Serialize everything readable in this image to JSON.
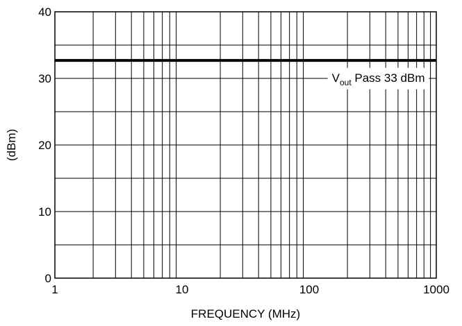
{
  "chart_data": {
    "type": "line",
    "title": "",
    "xlabel": "FREQUENCY (MHz)",
    "ylabel": "(dBm)",
    "xscale": "log",
    "xlim": [
      1,
      1000
    ],
    "ylim": [
      0,
      40
    ],
    "grid": true,
    "x_ticks": [
      1,
      10,
      100,
      1000
    ],
    "x_tick_labels": [
      "1",
      "10",
      "100",
      "1000"
    ],
    "y_ticks": [
      0,
      10,
      20,
      30,
      40
    ],
    "y_tick_labels": [
      "0",
      "10",
      "20",
      "30",
      "40"
    ],
    "series": [
      {
        "name": "Vout Pass 33 dBm",
        "x": [
          1,
          1000
        ],
        "y": [
          32.7,
          32.7
        ]
      }
    ],
    "annotation": {
      "main": "V",
      "sub": "out",
      "rest": " Pass 33 dBm",
      "anchor_x": 350,
      "anchor_y": 29.5
    },
    "colors": {
      "line": "#000000",
      "grid": "#000000",
      "background": "#ffffff"
    }
  }
}
